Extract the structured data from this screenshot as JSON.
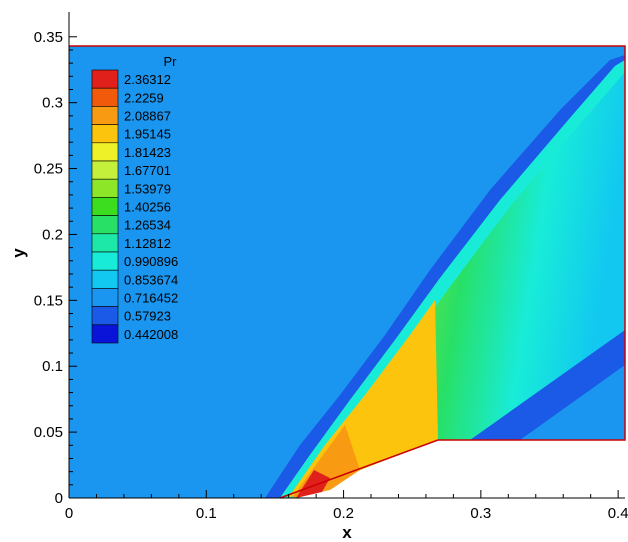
{
  "chart_data": {
    "type": "contour",
    "variable": "Pr",
    "xlabel": "x",
    "ylabel": "y",
    "xlim": [
      0,
      0.405
    ],
    "ylim": [
      0,
      0.35
    ],
    "xticks": [
      0,
      0.1,
      0.2,
      0.3,
      0.4
    ],
    "xtick_labels": [
      "0",
      "0.1",
      "0.2",
      "0.3",
      "0.4"
    ],
    "yticks": [
      0,
      0.05,
      0.1,
      0.15,
      0.2,
      0.25,
      0.3,
      0.35
    ],
    "ytick_labels": [
      "0",
      "0.05",
      "0.1",
      "0.15",
      "0.2",
      "0.25",
      "0.3",
      "0.35"
    ],
    "domain_boundary": {
      "top_y": 0.343,
      "wedge_start": [
        0.155,
        0
      ],
      "wedge_corner": [
        0.27,
        0.045
      ],
      "right_x": 0.405,
      "boundary_color": "#cc0000"
    },
    "legend": {
      "title": "Pr",
      "placement": "top-left",
      "levels": [
        {
          "label": "2.36312",
          "color": "#e0201a"
        },
        {
          "label": "2.2259",
          "color": "#f05a0a"
        },
        {
          "label": "2.08867",
          "color": "#f89a12"
        },
        {
          "label": "1.95145",
          "color": "#fcc40c"
        },
        {
          "label": "1.81423",
          "color": "#eef028"
        },
        {
          "label": "1.67701",
          "color": "#c4f03c"
        },
        {
          "label": "1.53979",
          "color": "#8ee628"
        },
        {
          "label": "1.40256",
          "color": "#3cdc1e"
        },
        {
          "label": "1.26534",
          "color": "#28e066"
        },
        {
          "label": "1.12812",
          "color": "#1ee8a8"
        },
        {
          "label": "0.990896",
          "color": "#18ecd8"
        },
        {
          "label": "0.853674",
          "color": "#12c8f0"
        },
        {
          "label": "0.716452",
          "color": "#1a96f0"
        },
        {
          "label": "0.57923",
          "color": "#1a5ae6"
        },
        {
          "label": "0.442008",
          "color": "#0a14d8"
        }
      ]
    }
  }
}
